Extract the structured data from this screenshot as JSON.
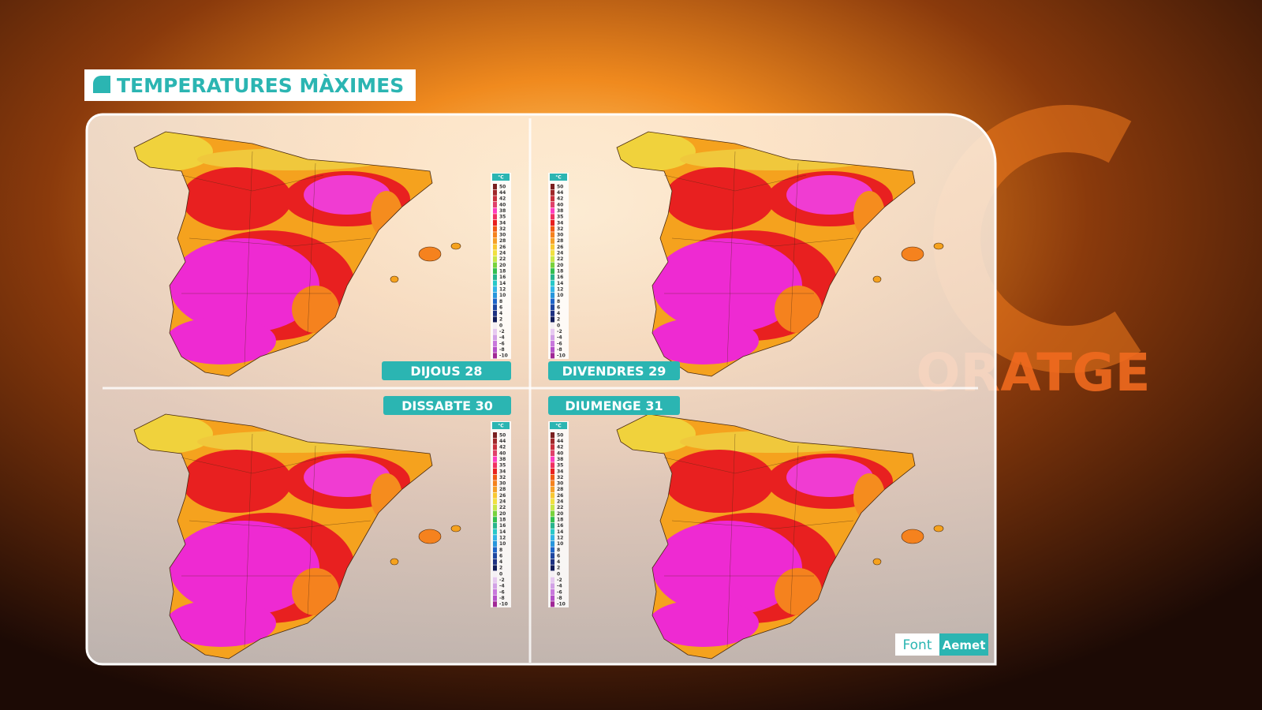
{
  "header": {
    "title": "TEMPERATURES MÀXIMES"
  },
  "maps": [
    {
      "day": "DIJOUS 28"
    },
    {
      "day": "DIVENDRES 29"
    },
    {
      "day": "DISSABTE 30"
    },
    {
      "day": "DIUMENGE 31"
    }
  ],
  "legend": {
    "unit": "°C",
    "labels": [
      50,
      44,
      42,
      40,
      38,
      35,
      34,
      32,
      30,
      28,
      26,
      24,
      22,
      20,
      18,
      16,
      14,
      12,
      10,
      8,
      6,
      4,
      2,
      0,
      -2,
      -4,
      -6,
      -8,
      -10
    ],
    "colors": [
      "#7a1f1f",
      "#a0282a",
      "#c8303c",
      "#e0406a",
      "#ff3cbe",
      "#f03060",
      "#e82020",
      "#f05a14",
      "#f5821e",
      "#f5a028",
      "#f8c832",
      "#f0e040",
      "#c8e646",
      "#78d23c",
      "#32be50",
      "#28b48c",
      "#28c8c8",
      "#32b4e6",
      "#2896dc",
      "#1e64c8",
      "#1e46a0",
      "#1e3282",
      "#141e5a",
      "#f5f0f5",
      "#e6c8f0",
      "#d2a0e6",
      "#c878dc",
      "#b450c8",
      "#a02896"
    ]
  },
  "source": {
    "label": "Font",
    "name": "Aemet"
  },
  "background": {
    "brand": "ORATGE"
  }
}
